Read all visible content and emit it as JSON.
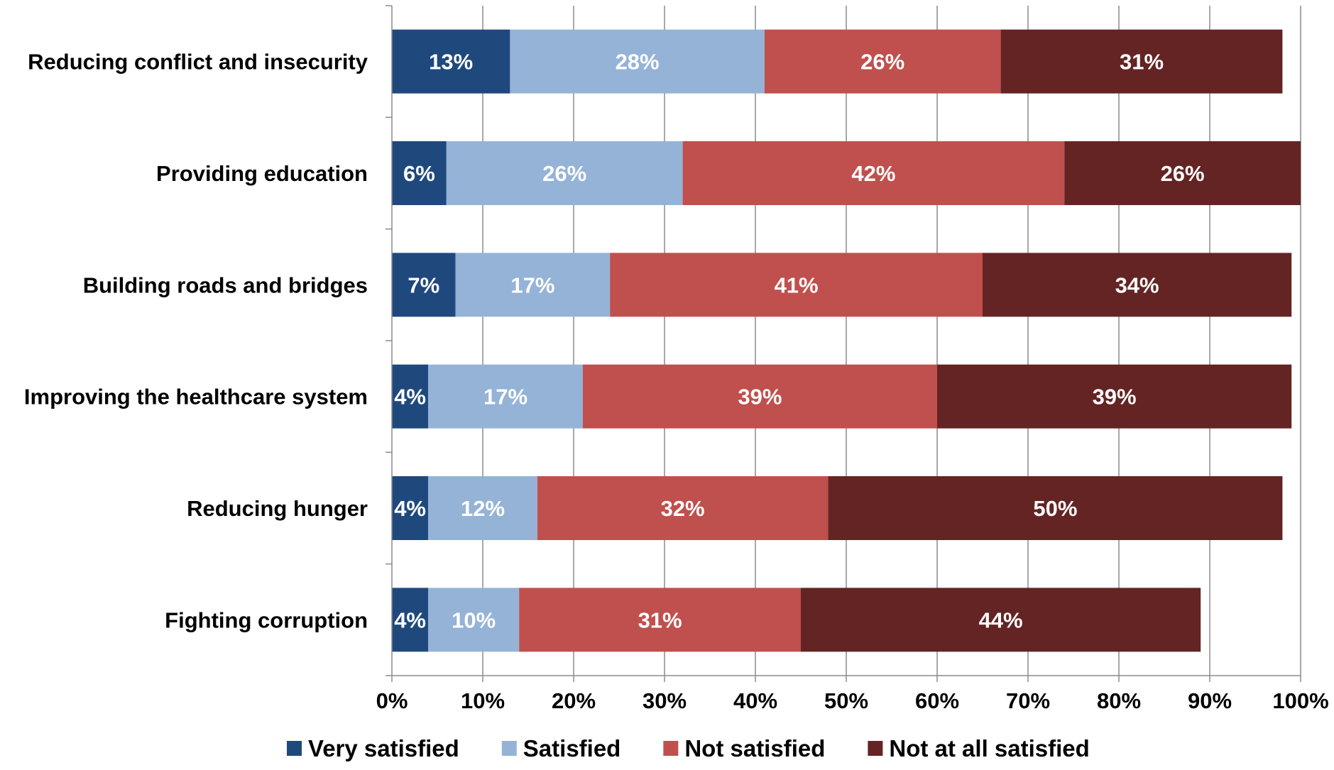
{
  "chart_data": {
    "type": "bar",
    "orientation": "horizontal",
    "stacked": true,
    "title": "",
    "xlabel": "",
    "ylabel": "",
    "xlim": [
      0,
      100
    ],
    "x_ticks": [
      "0%",
      "10%",
      "20%",
      "30%",
      "40%",
      "50%",
      "60%",
      "70%",
      "80%",
      "90%",
      "100%"
    ],
    "grid": "vertical",
    "legend_position": "bottom",
    "categories": [
      "Reducing conflict and insecurity",
      "Providing education",
      "Building roads and bridges",
      "Improving the healthcare system",
      "Reducing hunger",
      "Fighting corruption"
    ],
    "series": [
      {
        "name": "Very satisfied",
        "color": "#1F497D",
        "values": [
          13,
          6,
          7,
          4,
          4,
          4
        ],
        "labels": [
          "13%",
          "6%",
          "7%",
          "4%",
          "4%",
          "4%"
        ]
      },
      {
        "name": "Satisfied",
        "color": "#95B3D7",
        "values": [
          28,
          26,
          17,
          17,
          12,
          10
        ],
        "labels": [
          "28%",
          "26%",
          "17%",
          "17%",
          "12%",
          "10%"
        ]
      },
      {
        "name": "Not satisfied",
        "color": "#C0504D",
        "values": [
          26,
          42,
          41,
          39,
          32,
          31
        ],
        "labels": [
          "26%",
          "42%",
          "41%",
          "39%",
          "32%",
          "31%"
        ]
      },
      {
        "name": "Not at all satisfied",
        "color": "#632423",
        "values": [
          31,
          26,
          34,
          39,
          50,
          44
        ],
        "labels": [
          "31%",
          "26%",
          "34%",
          "39%",
          "50%",
          "44%"
        ]
      }
    ]
  }
}
